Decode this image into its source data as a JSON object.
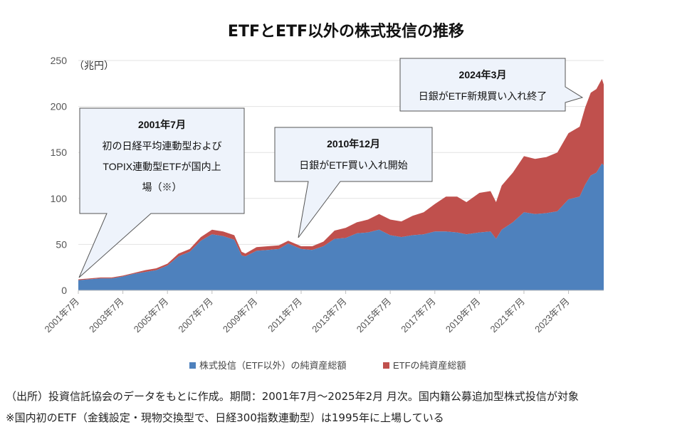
{
  "chart_data": {
    "type": "area",
    "title": "ETFとETF以外の株式投信の推移",
    "ylabel": "（兆円）",
    "ylim": [
      0,
      250
    ],
    "yticks": [
      "0",
      "50",
      "100",
      "150",
      "200",
      "250"
    ],
    "xticks": [
      "2001年7月",
      "2003年7月",
      "2005年7月",
      "2007年7月",
      "2009年7月",
      "2011年7月",
      "2013年7月",
      "2015年7月",
      "2017年7月",
      "2019年7月",
      "2021年7月",
      "2023年7月"
    ],
    "x": [
      2001.5,
      2002.0,
      2002.5,
      2003.0,
      2003.5,
      2004.0,
      2004.5,
      2005.0,
      2005.5,
      2006.0,
      2006.5,
      2007.0,
      2007.5,
      2008.0,
      2008.5,
      2008.83,
      2009.0,
      2009.5,
      2010.0,
      2010.5,
      2010.92,
      2011.5,
      2012.0,
      2012.5,
      2013.0,
      2013.5,
      2014.0,
      2014.5,
      2015.0,
      2015.5,
      2016.0,
      2016.5,
      2017.0,
      2017.5,
      2018.0,
      2018.5,
      2018.92,
      2019.5,
      2020.0,
      2020.25,
      2020.5,
      2021.0,
      2021.5,
      2022.0,
      2022.5,
      2023.0,
      2023.5,
      2024.0,
      2024.25,
      2024.5,
      2024.75,
      2025.0,
      2025.08
    ],
    "series": [
      {
        "name": "株式投信（ETF以外）の純資産総額",
        "color": "#4e81bd",
        "values": [
          11,
          12,
          13,
          13,
          15,
          18,
          20,
          22,
          27,
          37,
          42,
          54,
          61,
          59,
          55,
          38,
          37,
          43,
          44,
          45,
          51,
          45,
          44,
          48,
          56,
          57,
          62,
          63,
          66,
          60,
          58,
          60,
          61,
          64,
          64,
          63,
          61,
          63,
          64,
          56,
          66,
          74,
          85,
          83,
          84,
          86,
          99,
          102,
          115,
          125,
          128,
          138,
          136
        ]
      },
      {
        "name": "ETFの純資産総額",
        "color": "#c0504d",
        "values": [
          1,
          1,
          1,
          1,
          1,
          1,
          2,
          2,
          2,
          3,
          3,
          4,
          5,
          5,
          5,
          4,
          3,
          4,
          4,
          4,
          3,
          3,
          4,
          5,
          9,
          11,
          12,
          14,
          17,
          17,
          17,
          21,
          24,
          30,
          38,
          39,
          35,
          43,
          44,
          40,
          48,
          54,
          61,
          60,
          61,
          64,
          72,
          76,
          84,
          90,
          91,
          92,
          88
        ]
      }
    ],
    "legend_position": "bottom",
    "annotations": [
      {
        "heading": "2001年7月",
        "lines": [
          "初の日経平均連動型および",
          "TOPIX連動型ETFが国内上",
          "場（※）"
        ]
      },
      {
        "heading": "2010年12月",
        "lines": [
          "日銀がETF買い入れ開始"
        ]
      },
      {
        "heading": "2024年3月",
        "lines": [
          "日銀がETF新規買い入れ終了"
        ]
      }
    ]
  },
  "notes": {
    "source": "（出所）投資信託協会のデータをもとに作成。期間：2001年7月～2025年2月 月次。国内籍公募追加型株式投信が対象",
    "etf_note": "※国内初のETF（金銭設定・現物交換型で、日経300指数連動型）は1995年に上場している"
  }
}
